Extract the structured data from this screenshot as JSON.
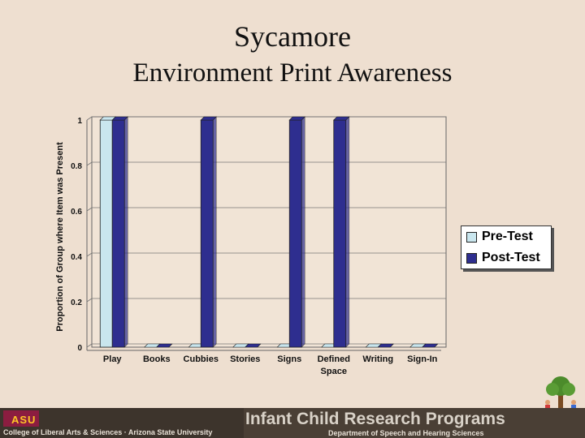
{
  "title": "Sycamore",
  "subtitle": "Environment Print Awareness",
  "chart_data": {
    "type": "bar",
    "ylabel": "Proportion of Group where Item was Present",
    "xlabel": "",
    "ylim": [
      0,
      1
    ],
    "yticks": [
      "0",
      "0.2",
      "0.4",
      "0.6",
      "0.8",
      "1"
    ],
    "categories": [
      [
        "Play"
      ],
      [
        "Books"
      ],
      [
        "Cubbies"
      ],
      [
        "Stories"
      ],
      [
        "Signs"
      ],
      [
        "Defined",
        "Space"
      ],
      [
        "Writing"
      ],
      [
        "Sign-In"
      ]
    ],
    "series": [
      {
        "name": "Pre-Test",
        "color": "#c9e6ee",
        "values": [
          1,
          0,
          0,
          0,
          0,
          0,
          0,
          0
        ]
      },
      {
        "name": "Post-Test",
        "color": "#2e2e8f",
        "values": [
          1,
          0,
          1,
          0,
          1,
          1,
          0,
          0
        ]
      }
    ],
    "grid": true,
    "legend": "right"
  },
  "footer": {
    "logo": "ASU",
    "left_text": "College of Liberal Arts & Sciences · Arizona State University",
    "right_title": "Infant Child Research Programs",
    "right_sub": "Department of Speech and Hearing Sciences"
  },
  "icons": [
    "tree-with-children-icon"
  ]
}
